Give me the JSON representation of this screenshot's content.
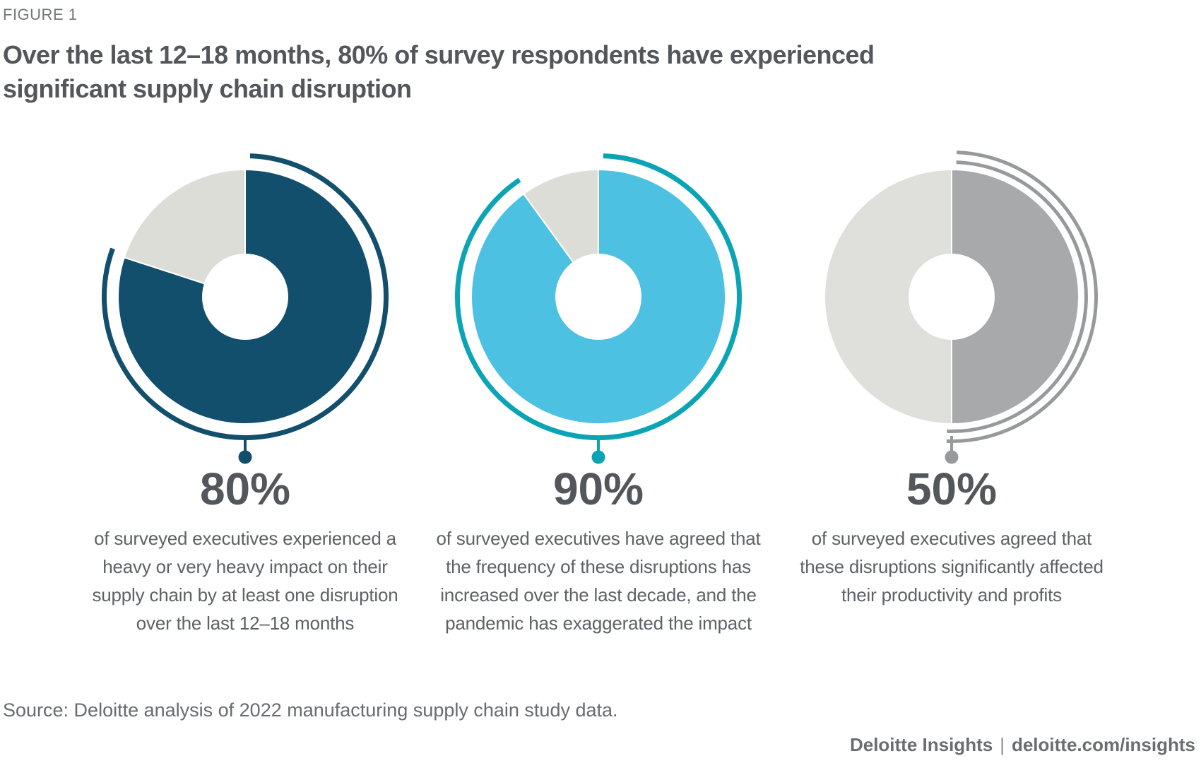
{
  "figure_label": "FIGURE 1",
  "title": "Over the last 12–18 months, 80% of survey respondents have experienced\nsignificant supply chain disruption",
  "source": "Source: Deloitte analysis of 2022 manufacturing supply chain study data.",
  "footer": {
    "brand": "Deloitte Insights",
    "separator": "|",
    "site": "deloitte.com/insights"
  },
  "chart_data": [
    {
      "type": "pie",
      "subtype": "donut",
      "label": "80%",
      "value": 80,
      "remainder": 20,
      "values": [
        80,
        20
      ],
      "slice_labels": [
        "share of respondents",
        "remainder"
      ],
      "description": "of surveyed executives experienced a\nheavy or very heavy impact on their\nsupply chain by at least one disruption\nover the last 12–18 months",
      "colors": {
        "value": "#114F6D",
        "remainder": "#DBDDD6",
        "arc": "#114F6D"
      },
      "arc_double": false,
      "legend": "none",
      "start_angle_deg": 0,
      "direction": "clockwise"
    },
    {
      "type": "pie",
      "subtype": "donut",
      "label": "90%",
      "value": 90,
      "remainder": 10,
      "values": [
        90,
        10
      ],
      "slice_labels": [
        "share of respondents",
        "remainder"
      ],
      "description": "of surveyed executives have agreed that\nthe frequency of these disruptions has\nincreased over the last decade, and the\npandemic has exaggerated the impact",
      "colors": {
        "value": "#4CC1E2",
        "remainder": "#DBDDD6",
        "arc": "#0AA4B5"
      },
      "arc_double": false,
      "legend": "none",
      "start_angle_deg": 0,
      "direction": "clockwise"
    },
    {
      "type": "pie",
      "subtype": "donut",
      "label": "50%",
      "value": 50,
      "remainder": 50,
      "values": [
        50,
        50
      ],
      "slice_labels": [
        "share of respondents",
        "remainder"
      ],
      "description": "of surveyed executives agreed that\nthese disruptions significantly affected\ntheir productivity and profits",
      "colors": {
        "value": "#A8A9AB",
        "remainder": "#DFE0DB",
        "arc": "#97999B"
      },
      "arc_double": true,
      "legend": "none",
      "start_angle_deg": 0,
      "direction": "clockwise"
    }
  ]
}
